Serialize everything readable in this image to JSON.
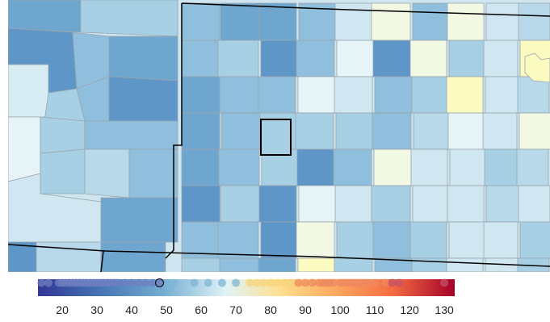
{
  "map": {
    "type": "county choropleth",
    "highlighted_county": "selected-county",
    "scale_min": 13,
    "scale_max": 133,
    "colors": {
      "low": "#313695",
      "mid_low": "#74add1",
      "mid": "#e0f3f8",
      "mid_high": "#fee090",
      "high": "#a50026",
      "county_border": "#9aa5ad",
      "state_border": "#000000"
    }
  },
  "legend": {
    "ticks": [
      "20",
      "30",
      "40",
      "50",
      "60",
      "70",
      "80",
      "90",
      "100",
      "110",
      "120",
      "130"
    ],
    "tick_values": [
      20,
      30,
      40,
      50,
      60,
      70,
      80,
      90,
      100,
      110,
      120,
      130
    ],
    "selected_value": 48,
    "dot_values": [
      14,
      16,
      19,
      20,
      21,
      22,
      23,
      24,
      25,
      26,
      27,
      28,
      29,
      30,
      31,
      32,
      33,
      34,
      35,
      36,
      38,
      40,
      42,
      44,
      46,
      48,
      52,
      58,
      62,
      66,
      70,
      74,
      76,
      78,
      80,
      82,
      84,
      86,
      88,
      90,
      92,
      94,
      95,
      96,
      97,
      98,
      100,
      101,
      102,
      103,
      104,
      105,
      106,
      107,
      108,
      110,
      113,
      115,
      117,
      130
    ]
  }
}
